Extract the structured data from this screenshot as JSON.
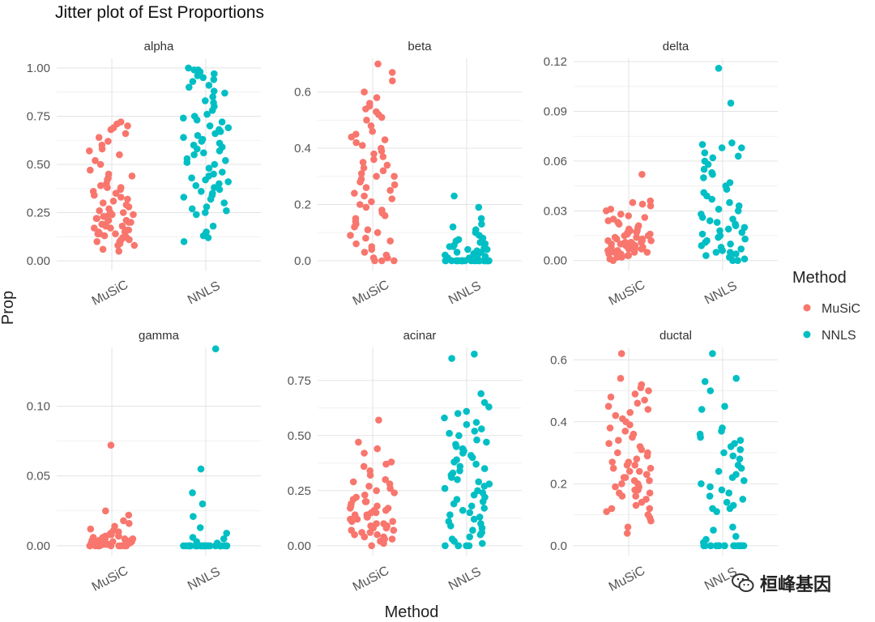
{
  "chart_data": {
    "type": "scatter",
    "title": "Jitter plot of Est Proportions",
    "xlabel": "Method",
    "ylabel": "Prop",
    "grid": true,
    "legend": {
      "title": "Method",
      "position": "right",
      "entries": [
        {
          "label": "MuSiC",
          "color": "#F8766D"
        },
        {
          "label": "NNLS",
          "color": "#00BFC4"
        }
      ]
    },
    "categories": [
      "MuSiC",
      "NNLS"
    ],
    "panels": [
      {
        "title": "alpha",
        "ylim": [
          -0.05,
          1.05
        ],
        "yticks": [
          0,
          0.25,
          0.5,
          0.75,
          1.0
        ],
        "ytick_labels": [
          "0.00",
          "0.25",
          "0.50",
          "0.75",
          "1.00"
        ],
        "x_tick_labels": false,
        "series": [
          {
            "name": "MuSiC",
            "values": [
              0.05,
              0.06,
              0.08,
              0.08,
              0.09,
              0.1,
              0.1,
              0.11,
              0.11,
              0.12,
              0.12,
              0.13,
              0.13,
              0.14,
              0.14,
              0.14,
              0.15,
              0.15,
              0.16,
              0.16,
              0.17,
              0.17,
              0.18,
              0.18,
              0.19,
              0.19,
              0.2,
              0.2,
              0.21,
              0.21,
              0.21,
              0.22,
              0.22,
              0.23,
              0.23,
              0.24,
              0.24,
              0.25,
              0.25,
              0.26,
              0.27,
              0.28,
              0.29,
              0.3,
              0.31,
              0.32,
              0.33,
              0.34,
              0.35,
              0.36,
              0.37,
              0.38,
              0.38,
              0.39,
              0.4,
              0.42,
              0.43,
              0.44,
              0.45,
              0.47,
              0.5,
              0.52,
              0.55,
              0.57,
              0.58,
              0.6,
              0.62,
              0.64,
              0.66,
              0.68,
              0.69,
              0.7,
              0.71,
              0.72
            ]
          },
          {
            "name": "NNLS",
            "values": [
              0.1,
              0.12,
              0.13,
              0.15,
              0.18,
              0.24,
              0.25,
              0.26,
              0.27,
              0.28,
              0.3,
              0.32,
              0.33,
              0.34,
              0.35,
              0.36,
              0.37,
              0.38,
              0.39,
              0.4,
              0.41,
              0.42,
              0.43,
              0.44,
              0.45,
              0.46,
              0.48,
              0.5,
              0.51,
              0.52,
              0.53,
              0.55,
              0.56,
              0.57,
              0.58,
              0.59,
              0.6,
              0.61,
              0.62,
              0.63,
              0.64,
              0.65,
              0.66,
              0.67,
              0.68,
              0.69,
              0.7,
              0.72,
              0.73,
              0.74,
              0.75,
              0.76,
              0.78,
              0.8,
              0.82,
              0.83,
              0.85,
              0.87,
              0.88,
              0.9,
              0.91,
              0.93,
              0.94,
              0.95,
              0.96,
              0.97,
              0.98,
              0.98,
              0.99,
              0.99,
              1.0
            ]
          }
        ]
      },
      {
        "title": "beta",
        "ylim": [
          -0.035,
          0.72
        ],
        "yticks": [
          0,
          0.2,
          0.4,
          0.6
        ],
        "ytick_labels": [
          "0.0",
          "0.2",
          "0.4",
          "0.6"
        ],
        "x_tick_labels": true,
        "series": [
          {
            "name": "MuSiC",
            "values": [
              0,
              0,
              0,
              0.01,
              0.01,
              0.02,
              0.03,
              0.04,
              0.05,
              0.06,
              0.07,
              0.08,
              0.09,
              0.1,
              0.11,
              0.12,
              0.13,
              0.14,
              0.15,
              0.16,
              0.17,
              0.18,
              0.19,
              0.2,
              0.21,
              0.22,
              0.23,
              0.24,
              0.25,
              0.26,
              0.27,
              0.28,
              0.29,
              0.3,
              0.3,
              0.31,
              0.32,
              0.33,
              0.34,
              0.35,
              0.36,
              0.37,
              0.38,
              0.39,
              0.4,
              0.41,
              0.42,
              0.43,
              0.44,
              0.45,
              0.46,
              0.48,
              0.5,
              0.51,
              0.52,
              0.53,
              0.54,
              0.55,
              0.56,
              0.58,
              0.6,
              0.64,
              0.67,
              0.7
            ]
          },
          {
            "name": "NNLS",
            "values": [
              0,
              0,
              0,
              0,
              0,
              0,
              0,
              0,
              0,
              0,
              0,
              0,
              0,
              0,
              0,
              0,
              0,
              0,
              0,
              0,
              0,
              0,
              0,
              0,
              0.005,
              0.01,
              0.01,
              0.015,
              0.02,
              0.02,
              0.025,
              0.03,
              0.03,
              0.035,
              0.04,
              0.04,
              0.045,
              0.05,
              0.05,
              0.055,
              0.06,
              0.065,
              0.07,
              0.075,
              0.08,
              0.09,
              0.1,
              0.11,
              0.12,
              0.13,
              0.15,
              0.19,
              0.23
            ]
          }
        ]
      },
      {
        "title": "delta",
        "ylim": [
          -0.006,
          0.122
        ],
        "yticks": [
          0,
          0.03,
          0.06,
          0.09,
          0.12
        ],
        "ytick_labels": [
          "0.00",
          "0.03",
          "0.06",
          "0.09",
          "0.12"
        ],
        "x_tick_labels": true,
        "series": [
          {
            "name": "MuSiC",
            "values": [
              0,
              0.001,
              0.002,
              0.002,
              0.003,
              0.003,
              0.004,
              0.004,
              0.005,
              0.005,
              0.005,
              0.006,
              0.006,
              0.007,
              0.007,
              0.007,
              0.008,
              0.008,
              0.008,
              0.009,
              0.009,
              0.009,
              0.01,
              0.01,
              0.01,
              0.011,
              0.011,
              0.011,
              0.012,
              0.012,
              0.012,
              0.013,
              0.013,
              0.014,
              0.014,
              0.015,
              0.015,
              0.016,
              0.016,
              0.017,
              0.017,
              0.018,
              0.018,
              0.019,
              0.02,
              0.021,
              0.022,
              0.023,
              0.024,
              0.025,
              0.026,
              0.027,
              0.028,
              0.03,
              0.031,
              0.033,
              0.034,
              0.035,
              0.036,
              0.052
            ]
          },
          {
            "name": "NNLS",
            "values": [
              0,
              0,
              0.001,
              0.002,
              0.002,
              0.003,
              0.004,
              0.005,
              0.005,
              0.006,
              0.007,
              0.008,
              0.009,
              0.01,
              0.011,
              0.012,
              0.013,
              0.014,
              0.015,
              0.016,
              0.017,
              0.018,
              0.019,
              0.02,
              0.021,
              0.022,
              0.023,
              0.024,
              0.025,
              0.026,
              0.028,
              0.03,
              0.031,
              0.033,
              0.035,
              0.037,
              0.039,
              0.041,
              0.043,
              0.045,
              0.047,
              0.05,
              0.052,
              0.053,
              0.055,
              0.058,
              0.06,
              0.062,
              0.063,
              0.065,
              0.068,
              0.068,
              0.07,
              0.071,
              0.095,
              0.116
            ]
          }
        ]
      },
      {
        "title": "gamma",
        "ylim": [
          -0.007,
          0.142
        ],
        "yticks": [
          0,
          0.05,
          0.1
        ],
        "ytick_labels": [
          "0.00",
          "0.05",
          "0.10"
        ],
        "x_tick_labels": true,
        "series": [
          {
            "name": "MuSiC",
            "values": [
              0,
              0,
              0,
              0,
              0,
              0,
              0,
              0,
              0,
              0,
              0,
              0.001,
              0.001,
              0.001,
              0.001,
              0.001,
              0.002,
              0.002,
              0.002,
              0.002,
              0.003,
              0.003,
              0.003,
              0.003,
              0.004,
              0.004,
              0.004,
              0.005,
              0.005,
              0.005,
              0.006,
              0.006,
              0.007,
              0.007,
              0.008,
              0.008,
              0.009,
              0.01,
              0.011,
              0.012,
              0.014,
              0.016,
              0.018,
              0.022,
              0.025,
              0.072
            ]
          },
          {
            "name": "NNLS",
            "values": [
              0,
              0,
              0,
              0,
              0,
              0,
              0,
              0,
              0,
              0,
              0,
              0,
              0,
              0,
              0,
              0,
              0,
              0,
              0,
              0,
              0,
              0,
              0,
              0,
              0,
              0,
              0,
              0,
              0,
              0,
              0.002,
              0.003,
              0.005,
              0.006,
              0.009,
              0.013,
              0.021,
              0.03,
              0.038,
              0.055,
              0.141
            ]
          }
        ]
      },
      {
        "title": "acinar",
        "ylim": [
          -0.045,
          0.9
        ],
        "yticks": [
          0,
          0.25,
          0.5,
          0.75
        ],
        "ytick_labels": [
          "0.00",
          "0.25",
          "0.50",
          "0.75"
        ],
        "x_tick_labels": true,
        "series": [
          {
            "name": "MuSiC",
            "values": [
              0,
              0.01,
              0.02,
              0.02,
              0.03,
              0.03,
              0.04,
              0.04,
              0.05,
              0.05,
              0.06,
              0.06,
              0.07,
              0.07,
              0.08,
              0.08,
              0.09,
              0.09,
              0.1,
              0.1,
              0.11,
              0.11,
              0.12,
              0.12,
              0.13,
              0.13,
              0.14,
              0.14,
              0.15,
              0.15,
              0.16,
              0.16,
              0.17,
              0.17,
              0.18,
              0.18,
              0.19,
              0.2,
              0.2,
              0.21,
              0.22,
              0.23,
              0.24,
              0.25,
              0.26,
              0.27,
              0.28,
              0.29,
              0.3,
              0.32,
              0.34,
              0.36,
              0.37,
              0.38,
              0.42,
              0.44,
              0.47,
              0.57
            ]
          },
          {
            "name": "NNLS",
            "values": [
              0,
              0,
              0,
              0,
              0,
              0.01,
              0.02,
              0.03,
              0.04,
              0.05,
              0.06,
              0.07,
              0.08,
              0.09,
              0.1,
              0.11,
              0.12,
              0.13,
              0.14,
              0.15,
              0.16,
              0.17,
              0.18,
              0.19,
              0.2,
              0.21,
              0.22,
              0.23,
              0.24,
              0.25,
              0.26,
              0.27,
              0.28,
              0.29,
              0.3,
              0.31,
              0.32,
              0.33,
              0.34,
              0.35,
              0.36,
              0.37,
              0.38,
              0.39,
              0.4,
              0.41,
              0.42,
              0.43,
              0.44,
              0.45,
              0.46,
              0.47,
              0.48,
              0.5,
              0.51,
              0.52,
              0.53,
              0.55,
              0.56,
              0.58,
              0.6,
              0.61,
              0.63,
              0.65,
              0.69,
              0.85,
              0.87
            ]
          }
        ]
      },
      {
        "title": "ductal",
        "ylim": [
          -0.032,
          0.64
        ],
        "yticks": [
          0,
          0.2,
          0.4,
          0.6
        ],
        "ytick_labels": [
          "0.0",
          "0.2",
          "0.4",
          "0.6"
        ],
        "x_tick_labels": true,
        "series": [
          {
            "name": "MuSiC",
            "values": [
              0.04,
              0.06,
              0.08,
              0.09,
              0.1,
              0.11,
              0.12,
              0.12,
              0.13,
              0.14,
              0.15,
              0.16,
              0.16,
              0.17,
              0.17,
              0.18,
              0.18,
              0.19,
              0.19,
              0.2,
              0.2,
              0.21,
              0.21,
              0.22,
              0.22,
              0.23,
              0.23,
              0.24,
              0.24,
              0.25,
              0.25,
              0.26,
              0.26,
              0.27,
              0.27,
              0.28,
              0.29,
              0.3,
              0.3,
              0.31,
              0.32,
              0.33,
              0.34,
              0.35,
              0.36,
              0.37,
              0.38,
              0.39,
              0.4,
              0.41,
              0.42,
              0.43,
              0.44,
              0.45,
              0.46,
              0.47,
              0.48,
              0.49,
              0.5,
              0.51,
              0.52,
              0.54,
              0.62
            ]
          },
          {
            "name": "NNLS",
            "values": [
              0,
              0,
              0,
              0,
              0,
              0,
              0,
              0,
              0,
              0,
              0,
              0,
              0,
              0,
              0,
              0,
              0,
              0.01,
              0.02,
              0.03,
              0.05,
              0.06,
              0.11,
              0.12,
              0.12,
              0.13,
              0.14,
              0.15,
              0.16,
              0.17,
              0.18,
              0.19,
              0.2,
              0.21,
              0.22,
              0.23,
              0.24,
              0.25,
              0.26,
              0.28,
              0.29,
              0.3,
              0.31,
              0.32,
              0.33,
              0.34,
              0.35,
              0.36,
              0.37,
              0.38,
              0.44,
              0.45,
              0.5,
              0.53,
              0.54,
              0.62
            ]
          }
        ]
      }
    ]
  },
  "watermark": {
    "text": "桓峰基因",
    "icon": "wechat-icon"
  }
}
